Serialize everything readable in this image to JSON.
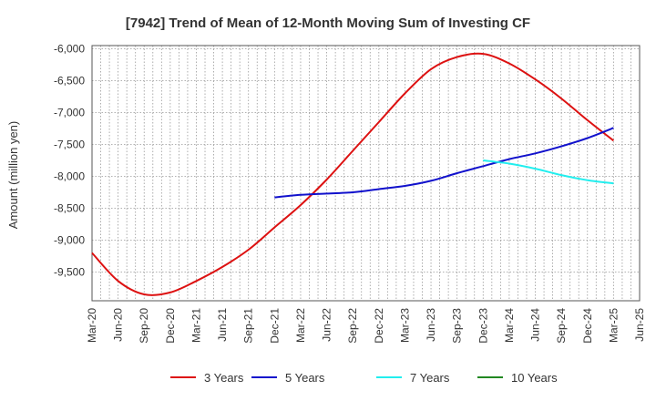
{
  "chart_data": {
    "type": "line",
    "title": "[7942]  Trend of Mean of 12-Month Moving Sum of Investing CF",
    "ylabel": "Amount (million yen)",
    "xlabel": "",
    "ylim": [
      -9950,
      -5950
    ],
    "y_ticks": [
      -6000,
      -6500,
      -7000,
      -7500,
      -8000,
      -8500,
      -9000,
      -9500
    ],
    "y_tick_labels": [
      "-6,000",
      "-6,500",
      "-7,000",
      "-7,500",
      "-8,000",
      "-8,500",
      "-9,000",
      "-9,500"
    ],
    "x_tick_labels": [
      "Mar-20",
      "Jun-20",
      "Sep-20",
      "Dec-20",
      "Mar-21",
      "Jun-21",
      "Sep-21",
      "Dec-21",
      "Mar-22",
      "Jun-22",
      "Sep-22",
      "Dec-22",
      "Mar-23",
      "Jun-23",
      "Sep-23",
      "Dec-23",
      "Mar-24",
      "Jun-24",
      "Sep-24",
      "Dec-24",
      "Mar-25",
      "Jun-25"
    ],
    "grid": true,
    "legend_position": "bottom",
    "series": [
      {
        "name": "3 Years",
        "color": "#dd1111",
        "points": [
          [
            "Mar-20",
            -9200
          ],
          [
            "Jun-20",
            -9640
          ],
          [
            "Sep-20",
            -9850
          ],
          [
            "Dec-20",
            -9820
          ],
          [
            "Mar-21",
            -9640
          ],
          [
            "Jun-21",
            -9420
          ],
          [
            "Sep-21",
            -9150
          ],
          [
            "Dec-21",
            -8800
          ],
          [
            "Mar-22",
            -8450
          ],
          [
            "Jun-22",
            -8050
          ],
          [
            "Sep-22",
            -7600
          ],
          [
            "Dec-22",
            -7150
          ],
          [
            "Mar-23",
            -6700
          ],
          [
            "Jun-23",
            -6320
          ],
          [
            "Sep-23",
            -6130
          ],
          [
            "Dec-23",
            -6080
          ],
          [
            "Mar-24",
            -6230
          ],
          [
            "Jun-24",
            -6480
          ],
          [
            "Sep-24",
            -6780
          ],
          [
            "Dec-24",
            -7120
          ],
          [
            "Mar-25",
            -7440
          ]
        ]
      },
      {
        "name": "5 Years",
        "color": "#1111cc",
        "points": [
          [
            "Dec-21",
            -8330
          ],
          [
            "Mar-22",
            -8290
          ],
          [
            "Jun-22",
            -8270
          ],
          [
            "Sep-22",
            -8250
          ],
          [
            "Dec-22",
            -8200
          ],
          [
            "Mar-23",
            -8150
          ],
          [
            "Jun-23",
            -8070
          ],
          [
            "Sep-23",
            -7950
          ],
          [
            "Dec-23",
            -7840
          ],
          [
            "Mar-24",
            -7730
          ],
          [
            "Jun-24",
            -7640
          ],
          [
            "Sep-24",
            -7530
          ],
          [
            "Dec-24",
            -7400
          ],
          [
            "Mar-25",
            -7240
          ]
        ]
      },
      {
        "name": "7 Years",
        "color": "#22eeee",
        "points": [
          [
            "Dec-23",
            -7750
          ],
          [
            "Mar-24",
            -7800
          ],
          [
            "Jun-24",
            -7880
          ],
          [
            "Sep-24",
            -7980
          ],
          [
            "Dec-24",
            -8060
          ],
          [
            "Mar-25",
            -8110
          ]
        ]
      },
      {
        "name": "10 Years",
        "color": "#228822",
        "points": []
      }
    ]
  }
}
